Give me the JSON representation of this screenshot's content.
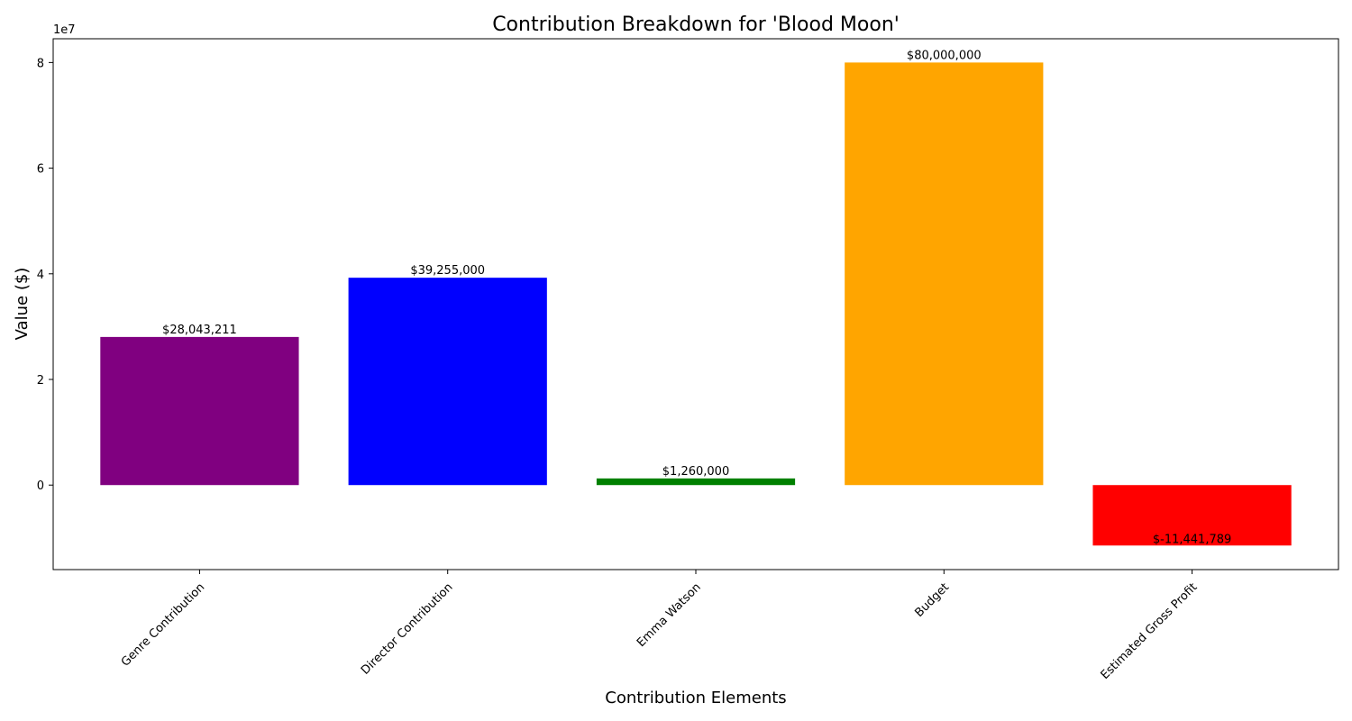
{
  "chart_data": {
    "type": "bar",
    "title": "Contribution Breakdown for 'Blood Moon'",
    "xlabel": "Contribution Elements",
    "ylabel": "Value ($)",
    "y_offset_text": "1e7",
    "y_scale": 10000000,
    "ylim": [
      -16000000,
      84500000
    ],
    "yticks": [
      0,
      20000000,
      40000000,
      60000000,
      80000000
    ],
    "ytick_labels": [
      "0",
      "2",
      "4",
      "6",
      "8"
    ],
    "grid": false,
    "categories": [
      "Genre Contribution",
      "Director Contribution",
      "Emma Watson",
      "Budget",
      "Estimated Gross Profit"
    ],
    "values": [
      28043211,
      39255000,
      1260000,
      80000000,
      -11441789
    ],
    "value_labels": [
      "$28,043,211",
      "$39,255,000",
      "$1,260,000",
      "$80,000,000",
      "$-11,441,789"
    ],
    "colors": [
      "#800080",
      "#0000ff",
      "#008000",
      "#ffa500",
      "#ff0000"
    ]
  }
}
